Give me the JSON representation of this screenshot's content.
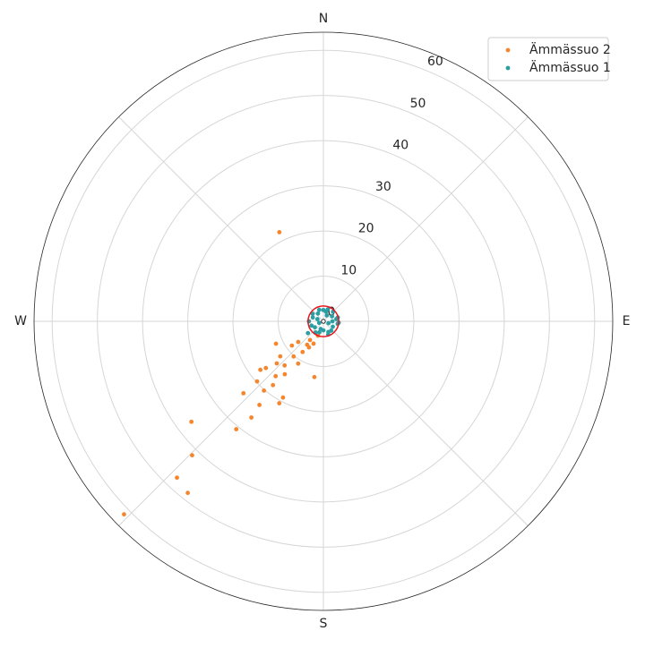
{
  "chart_data": {
    "type": "polar_scatter",
    "xlim": [
      0,
      360
    ],
    "xticks": [
      {
        "value": 0,
        "label": "N"
      },
      {
        "value": 90,
        "label": "E"
      },
      {
        "value": 180,
        "label": "S"
      },
      {
        "value": 270,
        "label": "W"
      }
    ],
    "theta_grid": [
      0,
      45,
      90,
      135,
      180,
      225,
      270,
      315
    ],
    "ylim": [
      0,
      64
    ],
    "yticks": [
      0,
      10,
      20,
      30,
      40,
      50,
      60
    ],
    "grid": true,
    "legend": "upper right",
    "highlight_circle": {
      "r": 3.4,
      "color": "#e8141c"
    },
    "series": [
      {
        "name": "Ämmässuo 2",
        "color": "#f5862e",
        "x": [
          333.7,
          225.9,
          223.1,
          218.3,
          224.4,
          232.7,
          218.9,
          216.8,
          217.4,
          228.0,
          208.3,
          207.9,
          218.3,
          220.6,
          227.8,
          232.4,
          230.9,
          221.0,
          216.1,
          227.9,
          230.9,
          244.7,
          220.2,
          210.8,
          214.1,
          189.2,
          232.4,
          230.6,
          214.7,
          215.5,
          203.7,
          208.9,
          221.3,
          200.6
        ],
        "values": [
          22.0,
          61.4,
          47.4,
          48.4,
          41.5,
          36.7,
          30.7,
          26.6,
          23.3,
          23.8,
          20.6,
          19.1,
          18.0,
          20.2,
          19.8,
          17.6,
          16.4,
          16.1,
          14.5,
          13.9,
          12.3,
          11.6,
          10.2,
          10.9,
          8.2,
          12.5,
          8.8,
          7.2,
          6.3,
          5.1,
          5.4,
          6.6,
          13.0,
          3.4
        ]
      },
      {
        "name": "Ämmässuo 1",
        "color": "#2b9ea3",
        "x": [
          0,
          20,
          45,
          60,
          80,
          100,
          120,
          140,
          160,
          180,
          200,
          215,
          235,
          250,
          270,
          290,
          305,
          325,
          340,
          30,
          110,
          200,
          290,
          90,
          250,
          232.6,
          15,
          75,
          155,
          95
        ],
        "values": [
          2.5,
          2.8,
          3.0,
          2.2,
          2.9,
          3.2,
          2.4,
          2.7,
          3.1,
          2.0,
          2.6,
          3.0,
          2.3,
          2.8,
          3.2,
          2.5,
          2.9,
          2.1,
          2.7,
          1.5,
          1.2,
          1.8,
          1.4,
          2.0,
          1.0,
          4.3,
          2.2,
          3.3,
          2.6,
          3.4
        ]
      }
    ]
  }
}
